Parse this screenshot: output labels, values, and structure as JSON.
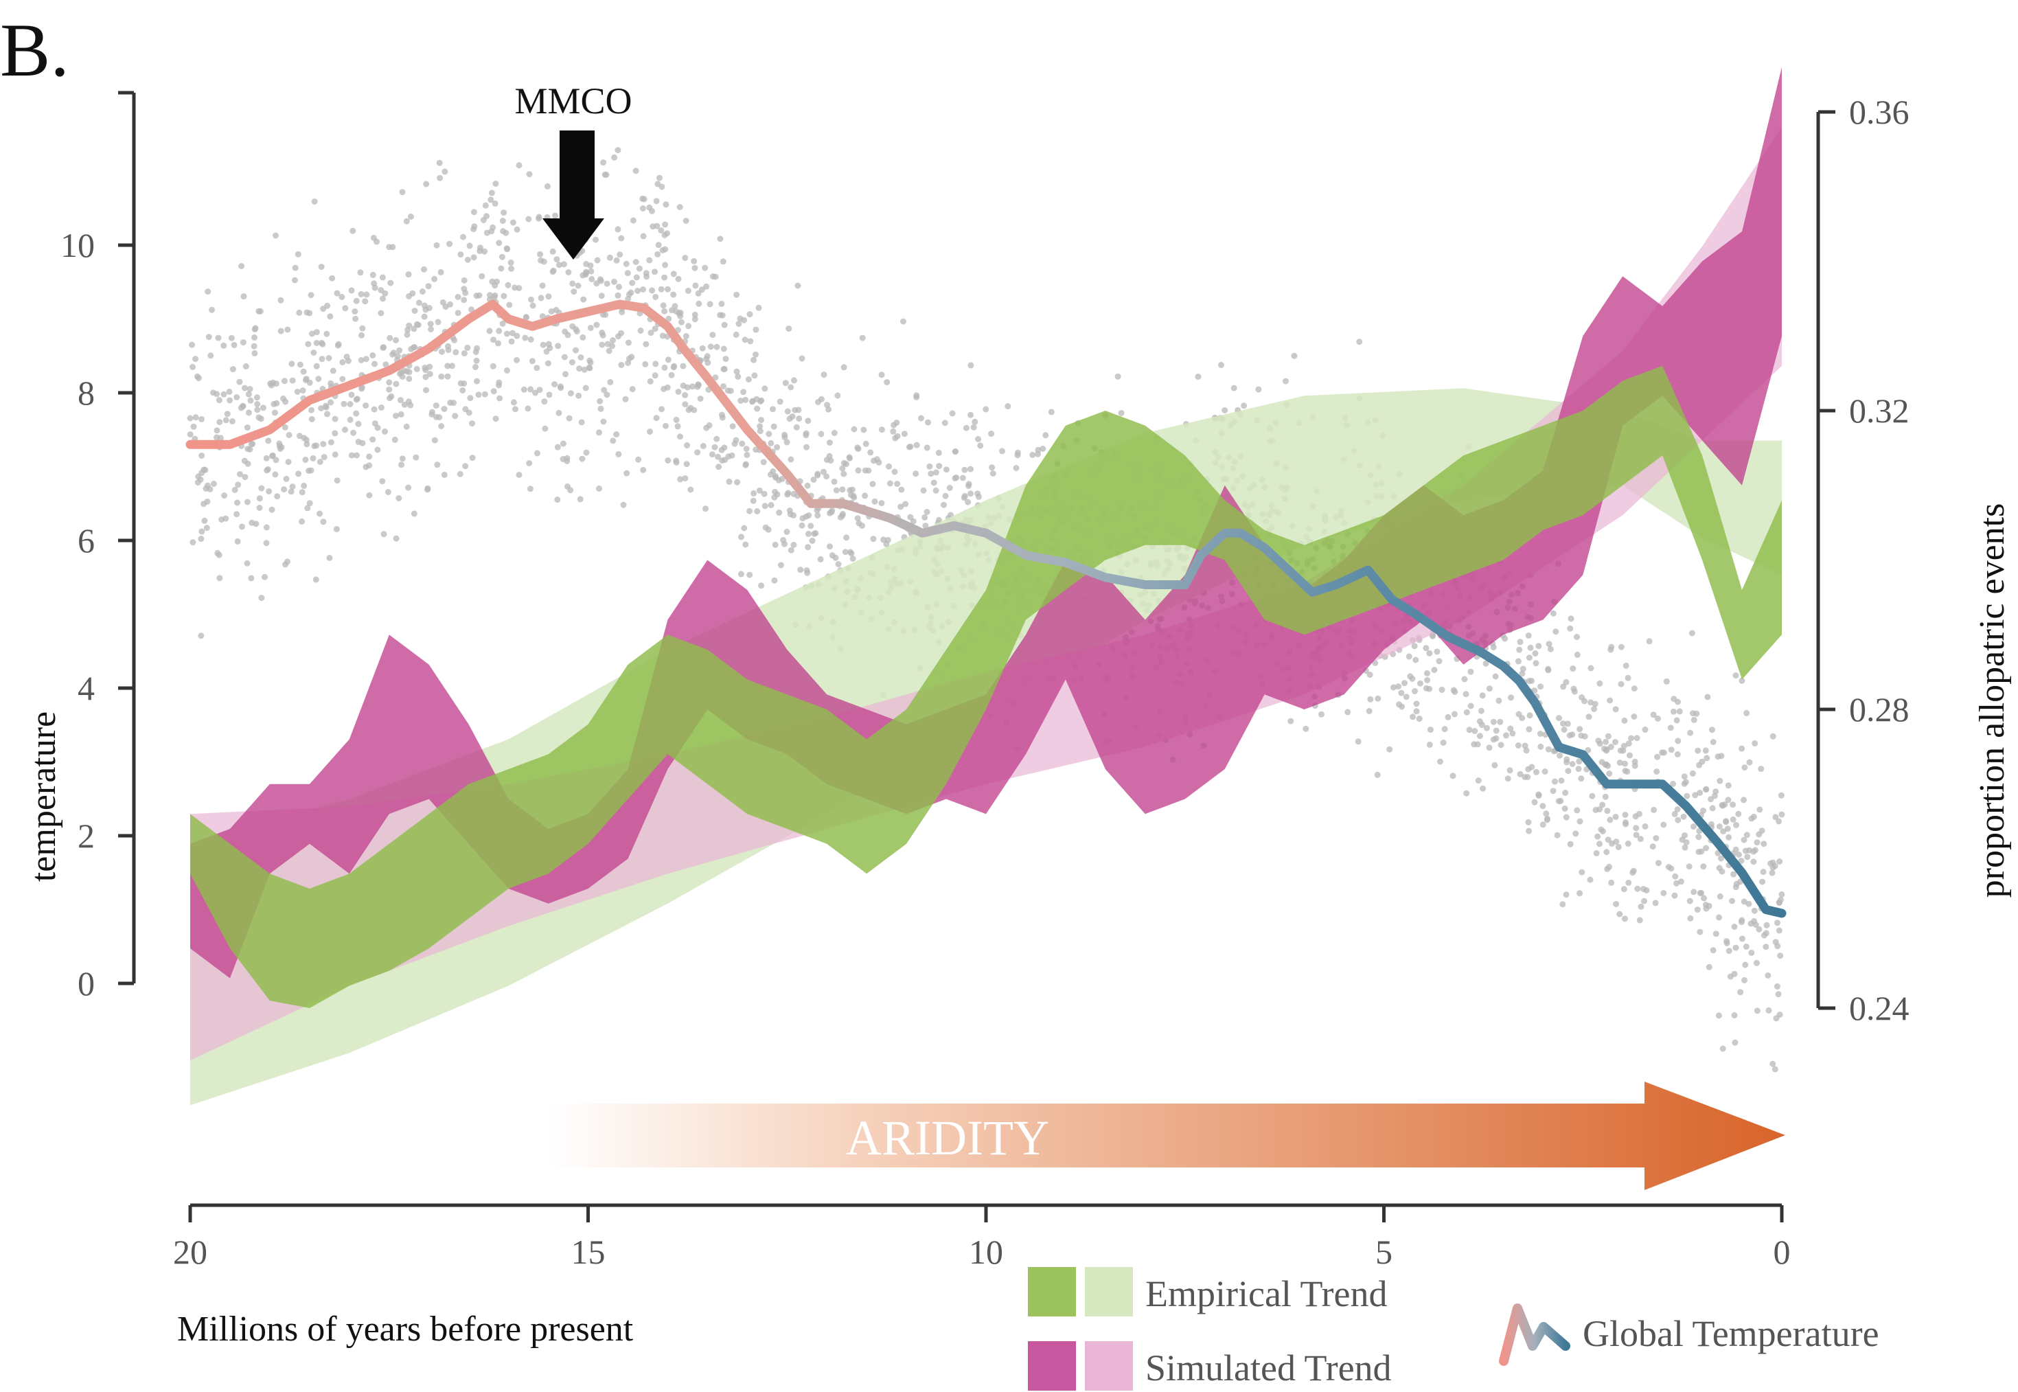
{
  "panel_label": "B.",
  "annotations": {
    "mmco": "MMCO",
    "aridity": "ARIDITY"
  },
  "colors": {
    "empirical_dark": "#8fbc4c",
    "empirical_light": "#d6e8c0",
    "simulated_dark": "#c2428f",
    "simulated_light": "#e9b6d6",
    "temp_warm": "#f0948a",
    "temp_mid": "#a8b0b8",
    "temp_cool": "#3f7896",
    "scatter": "#b8b8b8",
    "aridity_start": "#ffffff",
    "aridity_end": "#d8642a",
    "axis": "#333333"
  },
  "legend": {
    "empirical": "Empirical Trend",
    "simulated": "Simulated Trend",
    "temperature": "Global Temperature"
  },
  "chart_data": {
    "type": "line",
    "xlabel": "Millions of years before present",
    "ylabel_left": "temperature",
    "ylabel_right": "proportion allopatric events",
    "xlim": [
      20,
      0
    ],
    "ylim_left": [
      0,
      11
    ],
    "ylim_right": [
      0.24,
      0.36
    ],
    "x_ticks": [
      20,
      15,
      10,
      5,
      0
    ],
    "y_ticks_left": [
      0,
      2,
      4,
      6,
      8,
      10
    ],
    "y_ticks_right": [
      "0.24",
      "0.28",
      "0.32",
      "0.36"
    ],
    "grid": false,
    "legend_position": "bottom-right",
    "annotations": [
      {
        "text": "MMCO",
        "x": 15.0,
        "type": "down-arrow"
      },
      {
        "text": "ARIDITY",
        "x_start": 15.3,
        "x_end": 0,
        "type": "gradient-arrow"
      }
    ],
    "series": [
      {
        "name": "Global Temperature",
        "axis": "left",
        "x": [
          20,
          19.5,
          19,
          18.5,
          18,
          17.5,
          17,
          16.5,
          16.2,
          16,
          15.7,
          15.4,
          15,
          14.6,
          14.3,
          14,
          13.8,
          13.5,
          13,
          12.5,
          12.2,
          11.8,
          11.5,
          11.2,
          10.8,
          10.4,
          10,
          9.5,
          9,
          8.5,
          8,
          7.5,
          7.3,
          7,
          6.8,
          6.5,
          6.2,
          5.9,
          5.6,
          5.2,
          4.9,
          4.6,
          4.2,
          3.8,
          3.5,
          3.3,
          3.1,
          2.8,
          2.5,
          2.2,
          1.8,
          1.5,
          1.2,
          0.8,
          0.5,
          0.2,
          0
        ],
        "y": [
          7.3,
          7.3,
          7.5,
          7.9,
          8.1,
          8.3,
          8.6,
          9.0,
          9.2,
          9.0,
          8.9,
          9.0,
          9.1,
          9.2,
          9.15,
          8.9,
          8.6,
          8.2,
          7.5,
          6.9,
          6.5,
          6.5,
          6.4,
          6.3,
          6.1,
          6.2,
          6.1,
          5.8,
          5.7,
          5.5,
          5.4,
          5.4,
          5.8,
          6.1,
          6.1,
          5.9,
          5.6,
          5.3,
          5.4,
          5.6,
          5.2,
          5.0,
          4.7,
          4.5,
          4.3,
          4.1,
          3.8,
          3.2,
          3.1,
          2.7,
          2.7,
          2.7,
          2.4,
          1.9,
          1.5,
          1.0,
          0.95
        ]
      },
      {
        "name": "Empirical Trend",
        "axis": "right",
        "x": [
          20,
          19.5,
          19,
          18.5,
          18,
          17.5,
          17,
          16.5,
          16,
          15.5,
          15,
          14.5,
          14,
          13.5,
          13,
          12.5,
          12,
          11.5,
          11,
          10.5,
          10,
          9.5,
          9,
          8.5,
          8,
          7.5,
          7,
          6.5,
          6,
          5.5,
          5,
          4.5,
          4,
          3.5,
          3,
          2.5,
          2,
          1.5,
          1,
          0.5,
          0
        ],
        "low": [
          0.258,
          0.248,
          0.241,
          0.24,
          0.243,
          0.245,
          0.248,
          0.252,
          0.256,
          0.258,
          0.262,
          0.268,
          0.274,
          0.27,
          0.266,
          0.264,
          0.262,
          0.258,
          0.262,
          0.27,
          0.28,
          0.292,
          0.296,
          0.3,
          0.302,
          0.302,
          0.3,
          0.292,
          0.29,
          0.292,
          0.294,
          0.296,
          0.298,
          0.3,
          0.304,
          0.306,
          0.31,
          0.314,
          0.3,
          0.284,
          0.29
        ],
        "high": [
          0.266,
          0.262,
          0.258,
          0.256,
          0.258,
          0.262,
          0.266,
          0.27,
          0.272,
          0.274,
          0.278,
          0.286,
          0.29,
          0.288,
          0.284,
          0.282,
          0.28,
          0.276,
          0.28,
          0.288,
          0.296,
          0.31,
          0.318,
          0.32,
          0.318,
          0.314,
          0.308,
          0.304,
          0.302,
          0.304,
          0.306,
          0.31,
          0.314,
          0.316,
          0.318,
          0.32,
          0.324,
          0.326,
          0.314,
          0.296,
          0.308
        ]
      },
      {
        "name": "Simulated Trend",
        "axis": "right",
        "x": [
          20,
          19.5,
          19,
          18.5,
          18,
          17.5,
          17,
          16.5,
          16,
          15.5,
          15,
          14.5,
          14,
          13.5,
          13,
          12.5,
          12,
          11.5,
          11,
          10.5,
          10,
          9.5,
          9,
          8.5,
          8,
          7.5,
          7,
          6.5,
          6,
          5.5,
          5,
          4.5,
          4,
          3.5,
          3,
          2.5,
          2,
          1.5,
          1,
          0.5,
          0
        ],
        "low": [
          0.248,
          0.244,
          0.258,
          0.262,
          0.258,
          0.266,
          0.268,
          0.262,
          0.256,
          0.254,
          0.256,
          0.26,
          0.272,
          0.28,
          0.276,
          0.274,
          0.27,
          0.268,
          0.266,
          0.268,
          0.266,
          0.274,
          0.284,
          0.272,
          0.266,
          0.268,
          0.272,
          0.282,
          0.28,
          0.282,
          0.288,
          0.292,
          0.286,
          0.29,
          0.292,
          0.298,
          0.318,
          0.322,
          0.316,
          0.31,
          0.33
        ],
        "high": [
          0.262,
          0.264,
          0.27,
          0.27,
          0.276,
          0.29,
          0.286,
          0.278,
          0.268,
          0.264,
          0.266,
          0.272,
          0.292,
          0.3,
          0.296,
          0.288,
          0.282,
          0.28,
          0.278,
          0.28,
          0.282,
          0.29,
          0.3,
          0.298,
          0.292,
          0.298,
          0.31,
          0.302,
          0.296,
          0.3,
          0.306,
          0.31,
          0.306,
          0.308,
          0.312,
          0.33,
          0.338,
          0.334,
          0.34,
          0.344,
          0.366
        ]
      },
      {
        "name": "Empirical Trend (smooth)",
        "axis": "right",
        "x": [
          20,
          18,
          16,
          14,
          12,
          10,
          8,
          6,
          4,
          2,
          1,
          0
        ],
        "low": [
          0.227,
          0.234,
          0.243,
          0.254,
          0.266,
          0.279,
          0.292,
          0.302,
          0.308,
          0.31,
          0.303,
          0.298
        ],
        "high": [
          0.262,
          0.268,
          0.276,
          0.288,
          0.298,
          0.308,
          0.317,
          0.322,
          0.323,
          0.32,
          0.316,
          0.316
        ]
      },
      {
        "name": "Simulated Trend (smooth)",
        "axis": "right",
        "x": [
          20,
          18,
          16,
          14,
          12,
          10,
          8,
          6,
          4,
          2,
          1,
          0
        ],
        "low": [
          0.233,
          0.243,
          0.251,
          0.258,
          0.264,
          0.27,
          0.275,
          0.282,
          0.292,
          0.306,
          0.316,
          0.326
        ],
        "high": [
          0.266,
          0.267,
          0.27,
          0.274,
          0.279,
          0.285,
          0.29,
          0.297,
          0.31,
          0.328,
          0.342,
          0.358
        ]
      }
    ]
  }
}
